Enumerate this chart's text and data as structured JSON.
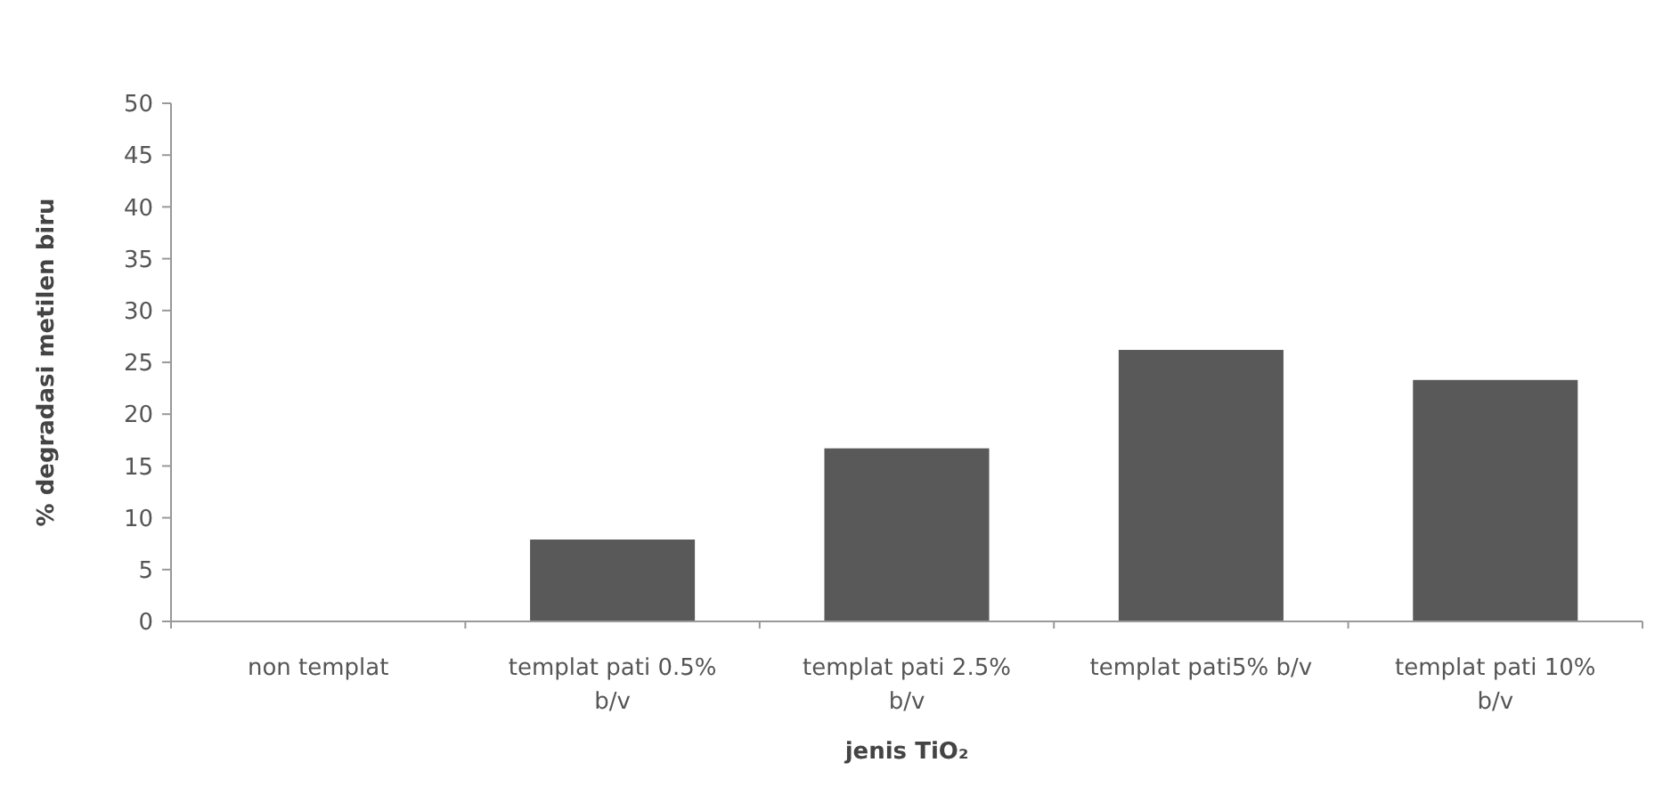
{
  "chart_data": {
    "type": "bar",
    "xlabel": "jenis TiO₂",
    "ylabel": "% degradasi metilen biru",
    "categories": [
      "non templat",
      "templat pati 0.5% b/v",
      "templat pati 2.5% b/v",
      "templat pati5% b/v",
      "templat pati  10% b/v"
    ],
    "values": [
      0,
      7.9,
      16.7,
      26.2,
      23.3
    ],
    "color": "#595959",
    "ylim": [
      0,
      50
    ],
    "yticks": [
      0,
      5,
      10,
      15,
      20,
      25,
      30,
      35,
      40,
      45,
      50
    ],
    "grid": false
  }
}
